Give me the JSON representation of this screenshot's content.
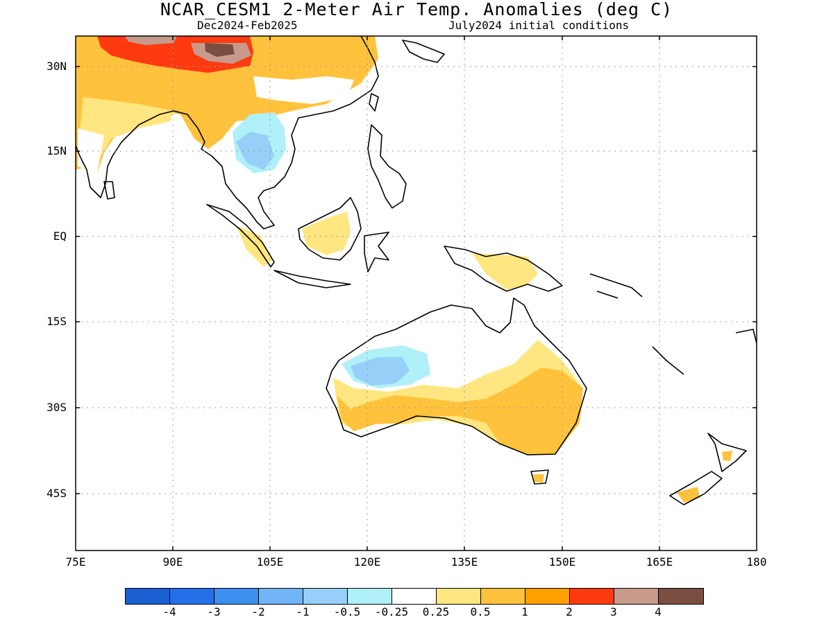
{
  "title": "NCAR_CESM1 2-Meter Air Temp. Anomalies (deg C)",
  "subtitle_left": "Dec2024-Feb2025",
  "subtitle_right": "July2024 initial conditions",
  "lat_labels": [
    "30N",
    "15N",
    "EQ",
    "15S",
    "30S",
    "45S"
  ],
  "lon_labels": [
    "75E",
    "90E",
    "105E",
    "120E",
    "135E",
    "150E",
    "165E",
    "180"
  ],
  "colorbar": {
    "colors": [
      "#1a5fd0",
      "#2470e8",
      "#3d8ff0",
      "#72b4f8",
      "#96d0f8",
      "#b0f0f8",
      "#ffffff",
      "#ffe680",
      "#ffc23c",
      "#ffa000",
      "#ff3a10",
      "#c89a8c",
      "#7a4e40"
    ],
    "labels": [
      "-4",
      "-3",
      "-2",
      "-1",
      "-0.5",
      "-0.25",
      "0.25",
      "0.5",
      "1",
      "2",
      "3",
      "4"
    ]
  },
  "map_extent": {
    "lon": [
      75,
      180
    ],
    "lat": [
      -55,
      35
    ]
  },
  "anomaly_colors": {
    "light_yellow": "#ffe680",
    "orange": "#ffc23c",
    "dark_orange": "#ffa000",
    "red": "#ff3a10",
    "rose": "#c89a8c",
    "brown": "#7a4e40",
    "light_blue": "#b0f0f8",
    "blue": "#96d0f8"
  }
}
